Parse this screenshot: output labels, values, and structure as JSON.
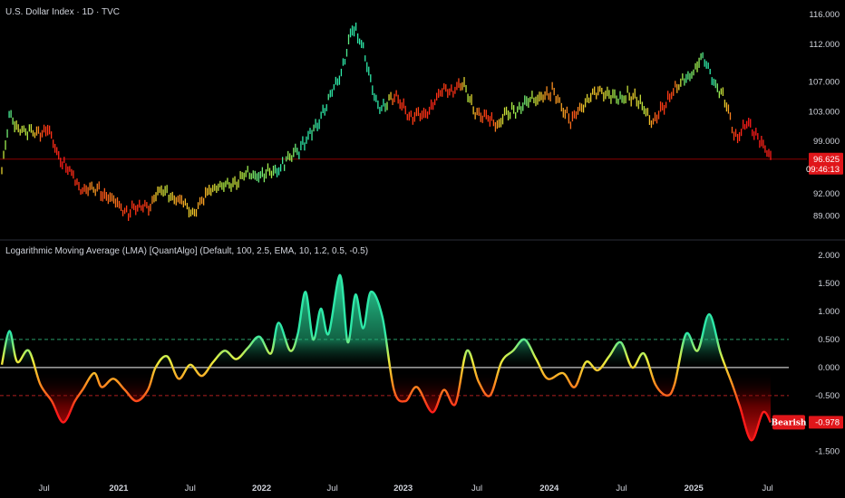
{
  "header": {
    "symbol_title": "U.S. Dollar Index · 1D · TVC",
    "indicator_title": "Logarithmic Moving Average (LMA) [QuantAlgo] (Default, 100, 2.5, EMA, 10, 1.2, 0.5, -0.5)"
  },
  "colors": {
    "background": "#000000",
    "bullish": "#2ee8a8",
    "neutral": "#f0e040",
    "bearish": "#ff1a1a",
    "zero_line": "#c8c8c8",
    "upper_threshold": "#2a9d6a",
    "lower_threshold": "#b02020",
    "price_line": "#8b0000"
  },
  "chart_data": [
    {
      "type": "line",
      "name": "price",
      "x_labels": [
        "Jul",
        "2021",
        "Jul",
        "2022",
        "Jul",
        "2023",
        "Jul",
        "2024",
        "Jul",
        "2025",
        "Jul"
      ],
      "y_ticks": [
        "116.000",
        "112.000",
        "107.000",
        "103.000",
        "99.000",
        "92.000",
        "89.000"
      ],
      "y_tick_values": [
        116,
        112,
        107,
        103,
        99,
        92,
        89
      ],
      "ylim": [
        87,
        117
      ],
      "last_price_label": "96.625",
      "countdown_label": "09:46:13",
      "last_price": 96.625,
      "x": [
        0,
        0.01,
        0.03,
        0.06,
        0.075,
        0.1,
        0.125,
        0.14,
        0.16,
        0.19,
        0.21,
        0.23,
        0.25,
        0.27,
        0.3,
        0.32,
        0.34,
        0.36,
        0.385,
        0.41,
        0.43,
        0.44,
        0.455,
        0.46,
        0.47,
        0.49,
        0.5,
        0.51,
        0.53,
        0.55,
        0.57,
        0.6,
        0.62,
        0.645,
        0.67,
        0.7,
        0.72,
        0.74,
        0.76,
        0.78,
        0.8,
        0.815,
        0.83,
        0.85,
        0.87,
        0.89,
        0.91,
        0.925,
        0.94,
        0.955,
        0.97,
        0.985,
        1.0
      ],
      "values": [
        95,
        102.5,
        100,
        100.5,
        97,
        93,
        92.5,
        91.5,
        89.5,
        90.5,
        92.5,
        91,
        89.5,
        92.5,
        93.5,
        94.5,
        94.5,
        95.5,
        97.8,
        101,
        106,
        107.5,
        114,
        113.5,
        111.5,
        103,
        104.5,
        105,
        102.5,
        102.5,
        105.5,
        106.5,
        102.5,
        101.5,
        103.5,
        105,
        105.5,
        101.5,
        104.5,
        106,
        104.5,
        105.5,
        104,
        101.5,
        105.5,
        107.5,
        110,
        107.5,
        104.5,
        99.5,
        101.5,
        99.5,
        96.6
      ]
    },
    {
      "type": "area",
      "name": "LMA",
      "label_text": "Bearish",
      "last_value_label": "-0.978",
      "y_ticks": [
        "2.000",
        "1.500",
        "1.000",
        "0.500",
        "0.000",
        "-0.500",
        "-1.000",
        "-1.500"
      ],
      "y_tick_values": [
        2.0,
        1.5,
        1.0,
        0.5,
        0.0,
        -0.5,
        -1.0,
        -1.5
      ],
      "ylim": [
        -1.65,
        2.05
      ],
      "thresholds": [
        0.5,
        -0.5
      ],
      "last_value": -0.978,
      "x": [
        0,
        0.01,
        0.02,
        0.035,
        0.05,
        0.065,
        0.08,
        0.095,
        0.105,
        0.12,
        0.13,
        0.145,
        0.16,
        0.175,
        0.19,
        0.2,
        0.215,
        0.23,
        0.245,
        0.26,
        0.275,
        0.29,
        0.305,
        0.32,
        0.335,
        0.35,
        0.36,
        0.375,
        0.385,
        0.395,
        0.405,
        0.415,
        0.425,
        0.44,
        0.45,
        0.46,
        0.47,
        0.48,
        0.495,
        0.51,
        0.525,
        0.54,
        0.56,
        0.575,
        0.59,
        0.605,
        0.62,
        0.635,
        0.65,
        0.665,
        0.68,
        0.695,
        0.71,
        0.73,
        0.745,
        0.76,
        0.775,
        0.79,
        0.805,
        0.82,
        0.835,
        0.85,
        0.865,
        0.875,
        0.89,
        0.905,
        0.92,
        0.935,
        0.95,
        0.96,
        0.975,
        0.99,
        1.0
      ],
      "values": [
        0.05,
        0.65,
        0.1,
        0.3,
        -0.3,
        -0.6,
        -0.98,
        -0.6,
        -0.4,
        -0.1,
        -0.35,
        -0.2,
        -0.4,
        -0.6,
        -0.4,
        0.0,
        0.2,
        -0.2,
        0.05,
        -0.15,
        0.1,
        0.3,
        0.15,
        0.35,
        0.55,
        0.25,
        0.8,
        0.3,
        0.6,
        1.35,
        0.5,
        1.05,
        0.6,
        1.65,
        0.45,
        1.3,
        0.7,
        1.35,
        0.9,
        -0.4,
        -0.6,
        -0.35,
        -0.8,
        -0.4,
        -0.65,
        0.3,
        -0.25,
        -0.5,
        0.1,
        0.3,
        0.5,
        0.15,
        -0.2,
        -0.1,
        -0.35,
        0.1,
        -0.05,
        0.2,
        0.45,
        0.0,
        0.25,
        -0.3,
        -0.5,
        -0.3,
        0.6,
        0.3,
        0.95,
        0.25,
        -0.3,
        -0.7,
        -1.3,
        -0.8,
        -0.98
      ]
    }
  ]
}
